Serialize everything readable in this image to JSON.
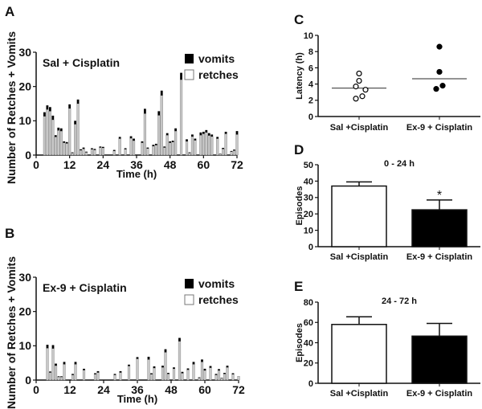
{
  "panels": {
    "A": "A",
    "B": "B",
    "C": "C",
    "D": "D",
    "E": "E"
  },
  "colors": {
    "vomit": "#000000",
    "retch": "#c8c8c8",
    "bar_open": "#ffffff",
    "bar_filled": "#000000"
  },
  "chart_data": [
    {
      "type": "bar",
      "id": "A",
      "stacked": true,
      "title": "Sal + Cisplatin",
      "xlabel": "Time (h)",
      "ylabel": "Number of Retches + Vomits",
      "xlim": [
        0,
        72
      ],
      "ylim": [
        0,
        30
      ],
      "xticks": [
        "0",
        "12",
        "24",
        "36",
        "48",
        "60",
        "72"
      ],
      "yticks": [
        "0",
        "10",
        "20",
        "30"
      ],
      "legend": [
        "vomits",
        "retches"
      ],
      "legend_position": "top-right",
      "x": [
        3,
        4,
        5,
        6,
        7,
        8,
        9,
        10,
        11,
        12,
        13,
        14,
        15,
        16,
        17,
        18,
        20,
        21,
        23,
        24,
        28,
        30,
        32,
        34,
        35,
        38,
        39,
        40,
        42,
        43,
        44,
        45,
        46,
        47,
        48,
        49,
        50,
        52,
        54,
        55,
        56,
        57,
        59,
        60,
        61,
        62,
        63,
        65,
        66,
        67,
        68,
        70,
        71,
        72
      ],
      "totals": [
        12.5,
        14.5,
        14,
        11.5,
        5.8,
        8,
        7.8,
        4,
        3.8,
        14.8,
        0.8,
        10,
        16.2,
        1.7,
        2.2,
        1,
        2,
        1.8,
        2.5,
        2.4,
        1.5,
        5.3,
        2,
        5.5,
        4.8,
        4,
        13.5,
        2.2,
        3,
        3.3,
        12.8,
        18.8,
        2.5,
        6.4,
        4,
        4.2,
        7.8,
        24,
        4.6,
        0.8,
        6,
        4.8,
        6.6,
        6.8,
        7.3,
        6.4,
        6,
        5.3,
        0.4,
        2.1,
        6.8,
        1.2,
        1.6,
        7
      ],
      "vomits": [
        1.2,
        1.2,
        1.2,
        1.2,
        0.5,
        0.8,
        0.8,
        0.4,
        0.4,
        1.2,
        0.2,
        1,
        1.2,
        0.3,
        0.4,
        0.2,
        0.3,
        0.3,
        0.3,
        0.3,
        0.3,
        0.5,
        0.3,
        0.6,
        0.6,
        0.4,
        1.4,
        0.3,
        0.4,
        0.4,
        1.2,
        1.4,
        0.3,
        0.6,
        0.4,
        0.4,
        0.8,
        2,
        0.6,
        0.2,
        0.6,
        0.5,
        0.8,
        0.6,
        0.7,
        0.7,
        0.6,
        0.5,
        0.1,
        0.3,
        0.6,
        0.2,
        0.3,
        1
      ]
    },
    {
      "type": "bar",
      "id": "B",
      "stacked": true,
      "title": "Ex-9 + Cisplatin",
      "xlabel": "Time (h)",
      "ylabel": "Number of Retches + Vomits",
      "xlim": [
        0,
        72
      ],
      "ylim": [
        0,
        30
      ],
      "xticks": [
        "0",
        "12",
        "24",
        "36",
        "48",
        "60",
        "72"
      ],
      "yticks": [
        "0",
        "10",
        "20",
        "30"
      ],
      "legend": [
        "vomits",
        "retches"
      ],
      "legend_position": "top-right",
      "x": [
        4,
        5,
        6,
        7,
        8,
        9,
        10,
        13,
        14,
        17,
        21,
        22,
        28,
        30,
        33,
        36,
        40,
        41,
        42,
        45,
        46,
        47,
        49,
        51,
        52,
        54,
        56,
        58,
        59,
        60,
        62,
        64,
        65,
        66,
        67,
        68,
        70,
        72
      ],
      "totals": [
        10.3,
        2.5,
        10.2,
        4.8,
        1.1,
        1.1,
        5.3,
        1.8,
        5.3,
        3.3,
        2,
        2.6,
        1.8,
        2.6,
        4.5,
        6.7,
        6.8,
        2,
        4,
        4.2,
        9,
        2.1,
        3.7,
        12.3,
        2.4,
        3.4,
        5.3,
        0.8,
        6,
        3.3,
        4.1,
        1.8,
        3.2,
        0.7,
        2.1,
        4.2,
        2,
        1.1
      ],
      "vomits": [
        1,
        0.3,
        1,
        0.6,
        0.2,
        0.2,
        0.7,
        0.3,
        0.7,
        0.4,
        0.3,
        0.4,
        0.3,
        0.4,
        0.4,
        0.5,
        0.8,
        0.3,
        0.5,
        0.5,
        0.9,
        0.3,
        0.4,
        1,
        0.4,
        0.4,
        0.7,
        0.2,
        0.7,
        0.5,
        0.5,
        0.3,
        0.4,
        0.1,
        0.3,
        0.5,
        0.3,
        0
      ]
    },
    {
      "type": "scatter",
      "id": "C",
      "ylabel": "Latency (h)",
      "ylim": [
        0,
        10
      ],
      "yticks": [
        "0",
        "2",
        "4",
        "6",
        "8",
        "10"
      ],
      "categories": [
        "Sal +Cisplatin",
        "Ex-9 + Cisplatin"
      ],
      "series": [
        {
          "name": "Sal +Cisplatin",
          "values": [
            5.3,
            4.4,
            3.7,
            3.3,
            2.5,
            2.2
          ],
          "mean": 3.5,
          "marker": "open"
        },
        {
          "name": "Ex-9 + Cisplatin",
          "values": [
            8.6,
            5.5,
            3.8,
            3.4
          ],
          "mean": 4.65,
          "marker": "filled"
        }
      ]
    },
    {
      "type": "bar",
      "id": "D",
      "title": "0 - 24 h",
      "ylabel": "Episodes",
      "ylim": [
        0,
        50
      ],
      "yticks": [
        "0",
        "10",
        "20",
        "30",
        "40",
        "50"
      ],
      "categories": [
        "Sal +Cisplatin",
        "Ex-9 + Cisplatin"
      ],
      "values": [
        37,
        22.5
      ],
      "errors": [
        2.5,
        6
      ],
      "annotations": [
        "",
        "*"
      ]
    },
    {
      "type": "bar",
      "id": "E",
      "title": "24 - 72 h",
      "ylabel": "Episodes",
      "ylim": [
        0,
        80
      ],
      "yticks": [
        "0",
        "20",
        "40",
        "60",
        "80"
      ],
      "categories": [
        "Sal +Cisplatin",
        "Ex-9 + Cisplatin"
      ],
      "values": [
        58,
        46.5
      ],
      "errors": [
        7.5,
        12.5
      ],
      "annotations": [
        "",
        ""
      ]
    }
  ]
}
